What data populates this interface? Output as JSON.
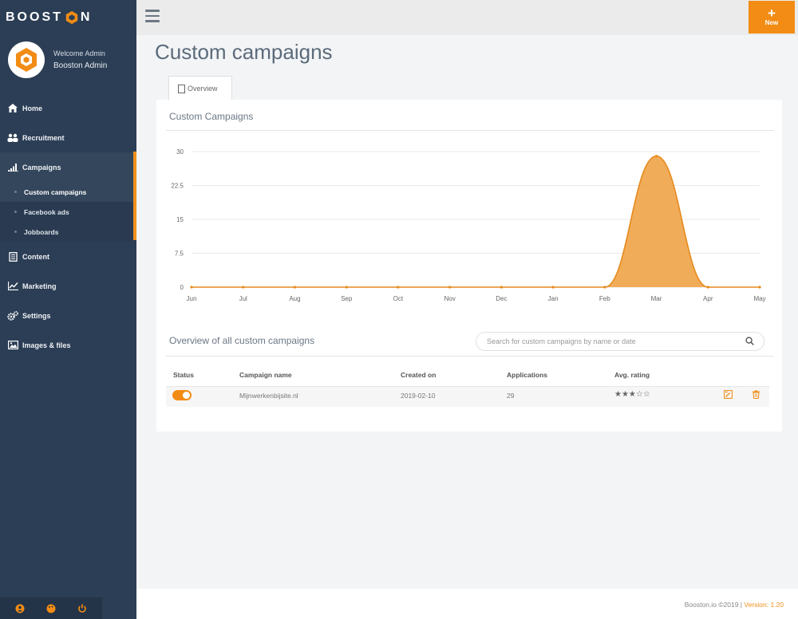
{
  "brand": {
    "name_left": "BOOST",
    "name_right": "N",
    "accent": "#f28c14"
  },
  "user": {
    "welcome": "Welcome Admin",
    "name": "Booston Admin"
  },
  "nav": {
    "items": [
      {
        "label": "Home",
        "icon": "home-icon"
      },
      {
        "label": "Recruitment",
        "icon": "users-icon"
      },
      {
        "label": "Campaigns",
        "icon": "signal-icon"
      },
      {
        "label": "Content",
        "icon": "document-icon"
      },
      {
        "label": "Marketing",
        "icon": "line-chart-icon"
      },
      {
        "label": "Settings",
        "icon": "gears-icon"
      },
      {
        "label": "Images & files",
        "icon": "image-icon"
      }
    ],
    "sub_items": [
      {
        "label": "Custom campaigns"
      },
      {
        "label": "Facebook ads"
      },
      {
        "label": "Jobboards"
      }
    ]
  },
  "topbar": {
    "new_label": "New"
  },
  "page": {
    "title": "Custom campaigns",
    "tab_label": "Overview"
  },
  "chart_panel": {
    "title": "Custom Campaigns"
  },
  "chart_data": {
    "type": "area",
    "categories": [
      "Jun",
      "Jul",
      "Aug",
      "Sep",
      "Oct",
      "Nov",
      "Dec",
      "Jan",
      "Feb",
      "Mar",
      "Apr",
      "May"
    ],
    "series": [
      {
        "values": [
          0,
          0,
          0,
          0,
          0,
          0,
          0,
          0,
          0,
          29,
          0,
          0
        ]
      }
    ],
    "ylim": [
      0,
      30
    ],
    "yticks": [
      "0",
      "7.5",
      "15",
      "22.5",
      "30"
    ],
    "grid": true,
    "color": "#f0a347"
  },
  "overview": {
    "title": "Overview of all custom campaigns",
    "search_placeholder": "Search for custom campaigns by name or date"
  },
  "table": {
    "headers": [
      "Status",
      "Campaign name",
      "Created on",
      "Applications",
      "Avg. rating"
    ],
    "rows": [
      {
        "status": "on",
        "name": "Mijnwerkenbijsite.nl",
        "created": "2019-02-10",
        "applications": "29",
        "rating": "★★★☆☆"
      }
    ]
  },
  "footer": {
    "copyright": "Booston.io ©2019 | ",
    "version": "Version: 1.20"
  }
}
